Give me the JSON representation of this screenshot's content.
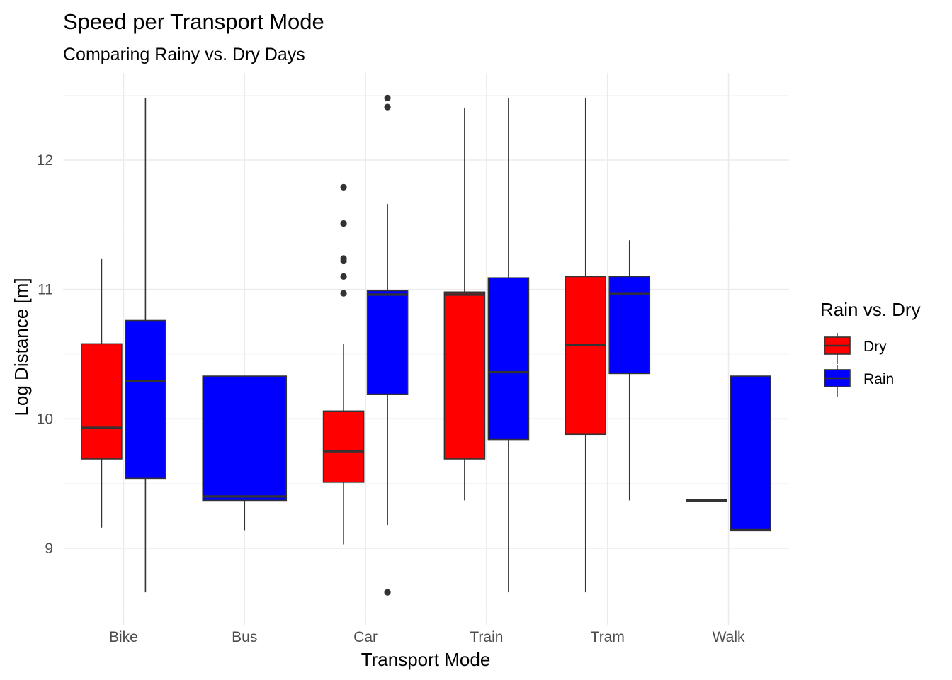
{
  "chart_data": {
    "type": "boxplot",
    "title": "Speed per Transport Mode",
    "subtitle": "Comparing Rainy vs. Dry Days",
    "xlabel": "Transport Mode",
    "ylabel": "Log Distance [m]",
    "ylim": [
      8.5,
      12.6
    ],
    "yticks": [
      9,
      10,
      11,
      12
    ],
    "categories": [
      "Bike",
      "Bus",
      "Car",
      "Train",
      "Tram",
      "Walk"
    ],
    "grid": true,
    "legend": {
      "title": "Rain vs. Dry",
      "position": "right",
      "entries": [
        {
          "name": "Dry",
          "color": "#ff0000"
        },
        {
          "name": "Rain",
          "color": "#0000ff"
        }
      ]
    },
    "series": [
      {
        "name": "Dry",
        "color": "#ff0000",
        "boxes": [
          {
            "category": "Bike",
            "whisker_low": 9.16,
            "q1": 9.69,
            "median": 9.93,
            "q3": 10.58,
            "whisker_high": 11.24,
            "outliers": []
          },
          null,
          {
            "category": "Car",
            "whisker_low": 9.03,
            "q1": 9.51,
            "median": 9.75,
            "q3": 10.06,
            "whisker_high": 10.58,
            "outliers": [
              10.97,
              11.1,
              11.22,
              11.24,
              11.51,
              11.79
            ]
          },
          {
            "category": "Train",
            "whisker_low": 9.37,
            "q1": 9.69,
            "median": 10.96,
            "q3": 10.98,
            "whisker_high": 12.4,
            "outliers": []
          },
          {
            "category": "Tram",
            "whisker_low": 8.66,
            "q1": 9.88,
            "median": 10.57,
            "q3": 11.1,
            "whisker_high": 12.48,
            "outliers": []
          },
          {
            "category": "Walk",
            "whisker_low": 9.37,
            "q1": 9.37,
            "median": 9.37,
            "q3": 9.37,
            "whisker_high": 9.37,
            "outliers": []
          }
        ]
      },
      {
        "name": "Rain",
        "color": "#0000ff",
        "boxes": [
          {
            "category": "Bike",
            "whisker_low": 8.66,
            "q1": 9.54,
            "median": 10.29,
            "q3": 10.76,
            "whisker_high": 12.48,
            "outliers": []
          },
          {
            "category": "Bus",
            "whisker_low": 9.14,
            "q1": 9.37,
            "median": 9.4,
            "q3": 10.33,
            "whisker_high": 10.33,
            "outliers": []
          },
          {
            "category": "Car",
            "whisker_low": 9.18,
            "q1": 10.19,
            "median": 10.96,
            "q3": 10.99,
            "whisker_high": 11.66,
            "outliers": [
              8.66,
              12.41,
              12.48
            ]
          },
          {
            "category": "Train",
            "whisker_low": 8.66,
            "q1": 9.84,
            "median": 10.36,
            "q3": 11.09,
            "whisker_high": 12.48,
            "outliers": []
          },
          {
            "category": "Tram",
            "whisker_low": 9.37,
            "q1": 10.35,
            "median": 10.97,
            "q3": 11.1,
            "whisker_high": 11.38,
            "outliers": []
          },
          {
            "category": "Walk",
            "whisker_low": 9.14,
            "q1": 9.14,
            "median": 9.14,
            "q3": 10.33,
            "whisker_high": 10.33,
            "outliers": []
          }
        ]
      }
    ]
  }
}
